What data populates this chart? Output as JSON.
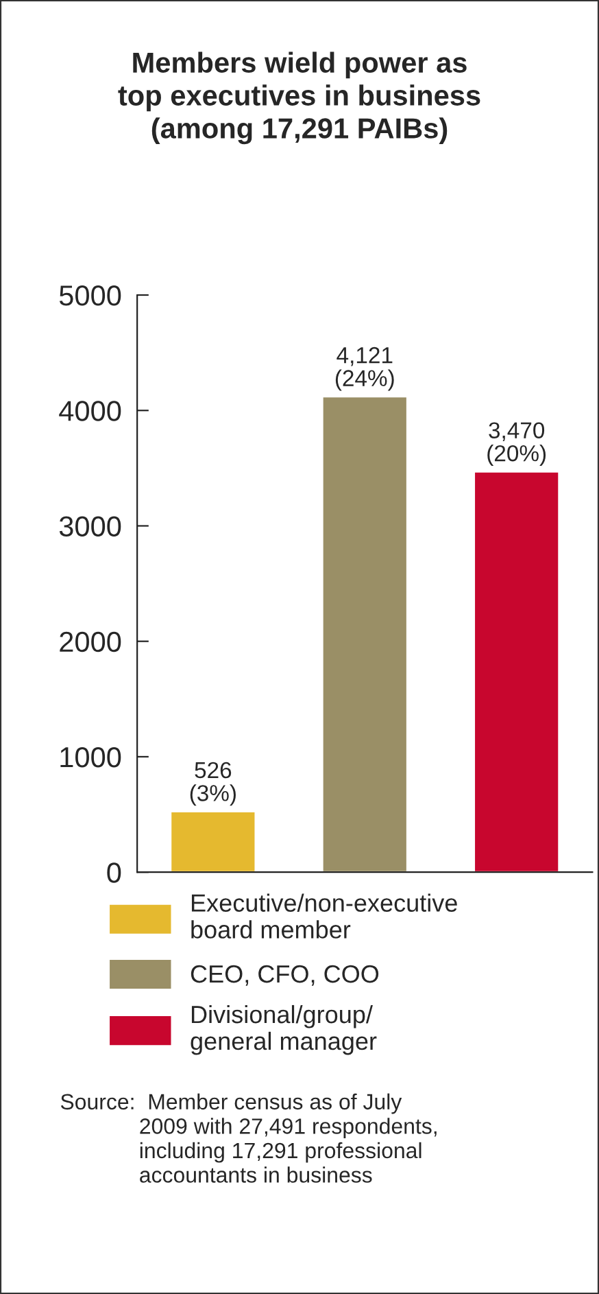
{
  "chart_data": {
    "type": "bar",
    "title": "Members wield power as\ntop executives in business\n(among 17,291 PAIBs)",
    "categories": [
      null,
      null,
      null
    ],
    "stacked": true,
    "series": [
      {
        "name": "Executive/non-executive\nboard member",
        "color": "#e5b92f",
        "values": [
          526,
          null,
          null
        ],
        "value_labels": [
          "526\n(3%)",
          null,
          null
        ]
      },
      {
        "name": "CEO, CFO, COO",
        "color": "#9a8f66",
        "values": [
          null,
          4121,
          null
        ],
        "value_labels": [
          null,
          "4,121\n(24%)",
          null
        ]
      },
      {
        "name": "Divisional/group/\ngeneral manager",
        "color": "#c8062e",
        "values": [
          null,
          null,
          3470
        ],
        "value_labels": [
          null,
          null,
          "3,470\n(20%)"
        ]
      }
    ],
    "ylim": [
      0,
      5000
    ],
    "yticks": [
      0,
      1000,
      2000,
      3000,
      4000,
      5000
    ],
    "grid": false,
    "legend": "bottom",
    "annotations": [
      "Source:  Member census as of July\n             2009 with 27,491 respondents,\n             including 17,291 professional\n             accountants in business"
    ]
  }
}
